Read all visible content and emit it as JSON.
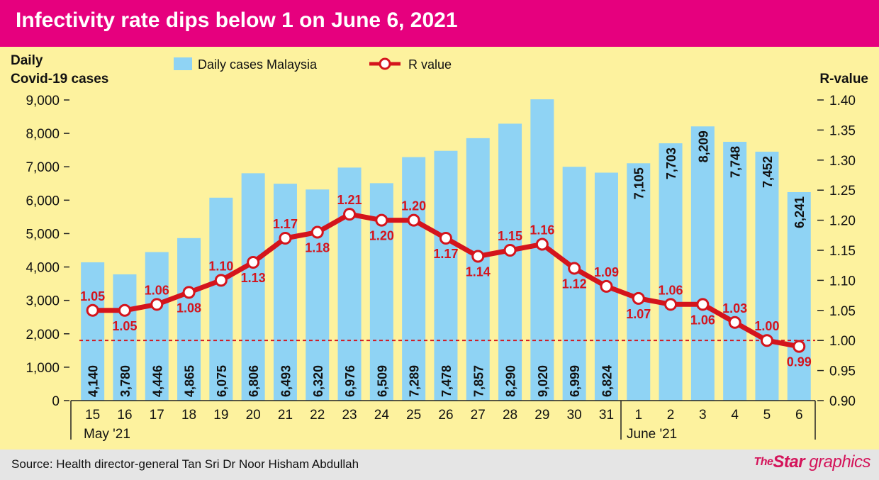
{
  "title": "Infectivity rate dips below 1 on June 6, 2021",
  "source": "Source: Health director-general Tan Sri Dr Noor Hisham Abdullah",
  "brand": {
    "the": "The",
    "star": "Star",
    "graphics": "graphics"
  },
  "colors": {
    "title_bg": "#e6007e",
    "background": "#fdf29e",
    "bar": "#8fd3f4",
    "line": "#d4141c",
    "footer_bg": "#e5e5e5"
  },
  "chart_data": {
    "type": "bar",
    "title": "Infectivity rate dips below 1 on June 6, 2021",
    "ylabel_left_1": "Daily",
    "ylabel_left_2": "Covid-19 cases",
    "ylabel_right": "R-value",
    "legend": {
      "bar": "Daily cases Malaysia",
      "line": "R value"
    },
    "left_ticks": [
      "9,000",
      "8,000",
      "7,000",
      "6,000",
      "5,000",
      "4,000",
      "3,000",
      "2,000",
      "1,000",
      "0"
    ],
    "right_ticks": [
      "1.40",
      "1.35",
      "1.30",
      "1.25",
      "1.20",
      "1.15",
      "1.10",
      "1.05",
      "1.00",
      "0.95",
      "0.90"
    ],
    "ylim_left": [
      0,
      9000
    ],
    "ylim_right": [
      0.9,
      1.4
    ],
    "threshold": 1.0,
    "categories": [
      "15",
      "16",
      "17",
      "18",
      "19",
      "20",
      "21",
      "22",
      "23",
      "24",
      "25",
      "26",
      "27",
      "28",
      "29",
      "30",
      "31",
      "1",
      "2",
      "3",
      "4",
      "5",
      "6"
    ],
    "month_labels": [
      "May '21",
      "June '21"
    ],
    "series": [
      {
        "name": "Daily cases Malaysia",
        "type": "bar",
        "values": [
          4140,
          3780,
          4446,
          4865,
          6075,
          6806,
          6493,
          6320,
          6976,
          6509,
          7289,
          7478,
          7857,
          8290,
          9020,
          6999,
          6824,
          7105,
          7703,
          8209,
          7748,
          7452,
          6241
        ],
        "labels": [
          "4,140",
          "3,780",
          "4,446",
          "4,865",
          "6,075",
          "6,806",
          "6,493",
          "6,320",
          "6,976",
          "6,509",
          "7,289",
          "7,478",
          "7,857",
          "8,290",
          "9,020",
          "6,999",
          "6,824",
          "7,105",
          "7,703",
          "8,209",
          "7,748",
          "7,452",
          "6,241"
        ]
      },
      {
        "name": "R value",
        "type": "line",
        "values": [
          1.05,
          1.05,
          1.06,
          1.08,
          1.1,
          1.13,
          1.17,
          1.18,
          1.21,
          1.2,
          1.2,
          1.17,
          1.14,
          1.15,
          1.16,
          1.12,
          1.09,
          1.07,
          1.06,
          1.06,
          1.03,
          1.0,
          0.99
        ],
        "labels": [
          "1.05",
          "1.05",
          "1.06",
          "1.08",
          "1.10",
          "1.13",
          "1.17",
          "1.18",
          "1.21",
          "1.20",
          "1.20",
          "1.17",
          "1.14",
          "1.15",
          "1.16",
          "1.12",
          "1.09",
          "1.07",
          "1.06",
          "1.06",
          "1.03",
          "1.00",
          "0.99"
        ]
      }
    ]
  }
}
